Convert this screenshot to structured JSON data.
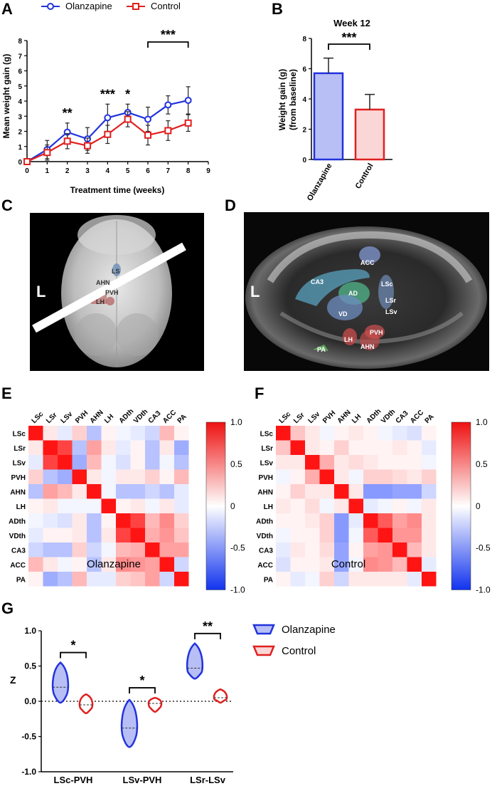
{
  "panels": [
    "A",
    "B",
    "C",
    "D",
    "E",
    "F",
    "G"
  ],
  "legend": {
    "series1": "Olanzapine",
    "series2": "Control"
  },
  "colors": {
    "olanzapine": "#2233dd",
    "control": "#e02020",
    "olz_fill": "#b8bff5",
    "ctl_fill": "#fbd6d6"
  },
  "chart_data": [
    {
      "panel": "A",
      "type": "line",
      "title": "",
      "xlabel": "Treatment time (weeks)",
      "ylabel": "Mean weight gain (g)",
      "xlim": [
        0,
        9
      ],
      "ylim": [
        0,
        8
      ],
      "x_ticks": [
        "0",
        "1",
        "2",
        "3",
        "4",
        "5",
        "6",
        "7",
        "8",
        "9"
      ],
      "y_ticks": [
        "0",
        "1",
        "2",
        "3",
        "4",
        "5",
        "6",
        "7",
        "8"
      ],
      "x": [
        0,
        1,
        2,
        3,
        4,
        5,
        6,
        7,
        8
      ],
      "series": [
        {
          "name": "Olanzapine",
          "values": [
            0,
            0.8,
            1.95,
            1.5,
            2.9,
            3.25,
            2.8,
            3.75,
            4.05
          ],
          "err": [
            0,
            0.6,
            0.6,
            0.75,
            0.9,
            0.55,
            0.8,
            0.6,
            0.9
          ]
        },
        {
          "name": "Control",
          "values": [
            0,
            0.6,
            1.35,
            1.05,
            1.8,
            2.8,
            1.75,
            2.05,
            2.55
          ],
          "err": [
            0,
            0.5,
            0.5,
            0.5,
            0.6,
            0.5,
            0.65,
            0.65,
            0.55
          ]
        }
      ],
      "significance": [
        {
          "x": 2,
          "label": "**"
        },
        {
          "x": 4,
          "label": "***"
        },
        {
          "x": 5,
          "label": "*"
        },
        {
          "x1": 6,
          "x2": 8,
          "label": "***"
        }
      ]
    },
    {
      "panel": "B",
      "type": "bar",
      "title": "Week 12",
      "ylabel": "Weight gain (g)\n(from baseline)",
      "ylabel_line1": "Weight gain (g)",
      "ylabel_line2": "(from baseline)",
      "categories": [
        "Olanzapine",
        "Control"
      ],
      "values": [
        5.7,
        3.3
      ],
      "err": [
        1.0,
        1.0
      ],
      "ylim": [
        0,
        8
      ],
      "y_ticks": [
        "0",
        "2",
        "4",
        "6",
        "8"
      ],
      "significance": "***"
    },
    {
      "panel": "E",
      "type": "heatmap",
      "caption": "Olanzapine",
      "labels": [
        "LSc",
        "LSr",
        "LSv",
        "PVH",
        "AHN",
        "LH",
        "ADth",
        "VDth",
        "CA3",
        "ACC",
        "PA"
      ],
      "colorbar": [
        "1.0",
        "0.5",
        "0",
        "-0.5",
        "-1.0"
      ],
      "matrix": [
        [
          1,
          0.1,
          -0.1,
          0.2,
          -0.3,
          0.05,
          -0.05,
          -0.1,
          -0.2,
          0.3,
          0.05
        ],
        [
          0.1,
          1,
          0.8,
          -0.3,
          0.4,
          0.1,
          -0.1,
          0.05,
          -0.3,
          0.1,
          -0.4
        ],
        [
          -0.1,
          0.8,
          1,
          -0.4,
          0.3,
          -0.05,
          -0.15,
          0.05,
          -0.3,
          -0.05,
          -0.3
        ],
        [
          0.2,
          -0.3,
          -0.4,
          1,
          0.1,
          -0.05,
          0.1,
          0.1,
          0.2,
          0.05,
          0.3
        ],
        [
          -0.3,
          0.4,
          0.3,
          0.1,
          1,
          -0.05,
          -0.3,
          -0.3,
          -0.2,
          -0.3,
          -0.1
        ],
        [
          0.05,
          0.1,
          -0.05,
          -0.05,
          -0.05,
          1,
          0.05,
          0.1,
          -0.05,
          0.1,
          -0.1
        ],
        [
          -0.05,
          -0.1,
          -0.15,
          0.1,
          -0.3,
          0.05,
          1,
          0.8,
          0.3,
          0.5,
          0.2
        ],
        [
          -0.1,
          0.05,
          0.05,
          0.1,
          -0.3,
          0.1,
          0.8,
          1,
          0.35,
          0.45,
          0.25
        ],
        [
          -0.2,
          -0.3,
          -0.3,
          0.2,
          -0.2,
          -0.05,
          0.3,
          0.35,
          1,
          0.4,
          0.4
        ],
        [
          0.3,
          0.1,
          -0.05,
          0.05,
          -0.3,
          0.1,
          0.5,
          0.45,
          0.4,
          1,
          -0.2
        ],
        [
          0.05,
          -0.4,
          -0.3,
          0.3,
          -0.1,
          -0.1,
          0.2,
          0.25,
          0.4,
          -0.2,
          1
        ]
      ]
    },
    {
      "panel": "F",
      "type": "heatmap",
      "caption": "Control",
      "labels": [
        "LSc",
        "LSr",
        "LSv",
        "PVH",
        "AHN",
        "LH",
        "ADth",
        "VDth",
        "CA3",
        "ACC",
        "PA"
      ],
      "colorbar": [
        "1.0",
        "0.5",
        "0",
        "-0.5",
        "-1.0"
      ],
      "matrix": [
        [
          1,
          0.25,
          0.1,
          -0.05,
          0.05,
          0.1,
          0.05,
          -0.05,
          -0.1,
          -0.15,
          0.05
        ],
        [
          0.25,
          1,
          0.1,
          0.05,
          0.2,
          0.05,
          0.05,
          0.05,
          0.1,
          0.05,
          -0.1
        ],
        [
          0.1,
          0.1,
          1,
          0.35,
          0.1,
          0.15,
          0.1,
          0.05,
          0.05,
          0.05,
          -0.05
        ],
        [
          -0.05,
          0.05,
          0.35,
          1,
          0.1,
          -0.05,
          0.2,
          0.2,
          0.15,
          0.1,
          0.2
        ],
        [
          0.05,
          0.2,
          0.1,
          0.1,
          1,
          0.1,
          -0.5,
          -0.5,
          -0.45,
          -0.45,
          -0.2
        ],
        [
          0.1,
          0.05,
          0.15,
          -0.05,
          0.1,
          1,
          -0.1,
          -0.05,
          0.05,
          -0.05,
          0.1
        ],
        [
          0.05,
          0.05,
          0.1,
          0.2,
          -0.5,
          -0.1,
          1,
          0.7,
          0.4,
          0.5,
          0.1
        ],
        [
          -0.05,
          0.05,
          0.05,
          0.2,
          -0.5,
          -0.05,
          0.7,
          1,
          0.45,
          0.45,
          0.1
        ],
        [
          -0.1,
          0.1,
          0.05,
          0.15,
          -0.45,
          0.05,
          0.4,
          0.45,
          1,
          0.3,
          0.1
        ],
        [
          -0.15,
          0.05,
          0.05,
          0.1,
          -0.45,
          -0.05,
          0.5,
          0.45,
          0.3,
          1,
          -0.1
        ],
        [
          0.05,
          -0.1,
          -0.05,
          0.2,
          -0.2,
          0.1,
          0.1,
          0.1,
          0.1,
          -0.1,
          1
        ]
      ]
    },
    {
      "panel": "G",
      "type": "violin",
      "ylabel": "Z",
      "ylim": [
        -1.0,
        1.0
      ],
      "y_ticks": [
        "1.0",
        "0.5",
        "0.0",
        "-0.5",
        "-1.0"
      ],
      "categories": [
        "LSc-PVH",
        "LSv-PVH",
        "LSr-LSv"
      ],
      "series": [
        {
          "name": "Olanzapine",
          "median": [
            0.2,
            -0.38,
            0.47
          ],
          "min": [
            -0.02,
            -0.65,
            0.32
          ],
          "max": [
            0.55,
            0.02,
            0.82
          ]
        },
        {
          "name": "Control",
          "median": [
            -0.05,
            -0.03,
            0.05
          ],
          "min": [
            -0.17,
            -0.15,
            -0.02
          ],
          "max": [
            0.1,
            0.05,
            0.17
          ]
        }
      ],
      "significance": [
        "*",
        "*",
        "**"
      ]
    }
  ],
  "brain_labels_c": [
    "LS",
    "AHN",
    "PVH",
    "LH"
  ],
  "brain_labels_d": [
    "ACC",
    "CA3",
    "AD",
    "LSc",
    "LSr",
    "LSv",
    "VD",
    "PVH",
    "LH",
    "AHN",
    "PA"
  ],
  "orientation_label": "L"
}
